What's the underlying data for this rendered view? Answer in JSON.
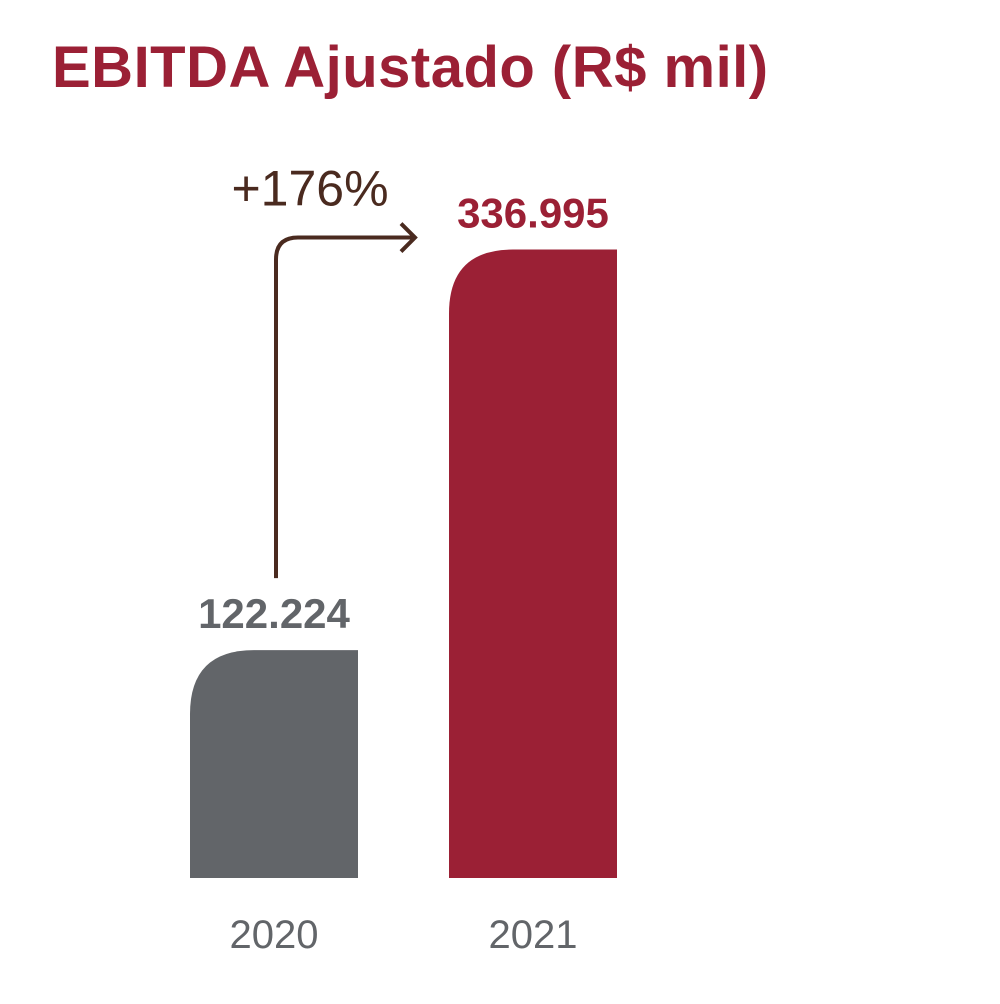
{
  "chart_data": {
    "type": "bar",
    "title": "EBITDA Ajustado (R$ mil)",
    "categories": [
      "2020",
      "2021"
    ],
    "values": [
      122224,
      336995
    ],
    "value_labels": [
      "122.224",
      "336.995"
    ],
    "growth_label": "+176%",
    "ylim": [
      0,
      370000
    ],
    "grid": false,
    "colors": {
      "title": "#9b2035",
      "bars": [
        "#626569",
        "#9b2035"
      ],
      "value_labels": [
        "#626569",
        "#9b2035"
      ],
      "category_labels": "#626569",
      "arrow": "#4a2a1f"
    }
  }
}
